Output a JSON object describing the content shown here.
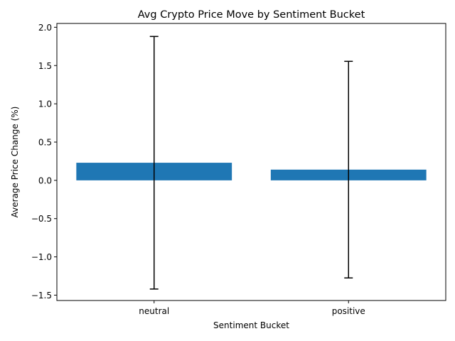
{
  "chart_data": {
    "type": "bar",
    "title": "Avg Crypto Price Move by Sentiment Bucket",
    "xlabel": "Sentiment Bucket",
    "ylabel": "Average Price Change (%)",
    "categories": [
      "neutral",
      "positive"
    ],
    "values": [
      0.23,
      0.14
    ],
    "error": [
      1.65,
      1.415
    ],
    "ylim": [
      -1.57,
      2.05
    ],
    "yticks": [
      -1.5,
      -1.0,
      -0.5,
      0.0,
      0.5,
      1.0,
      1.5,
      2.0
    ],
    "ytick_labels": [
      "−1.5",
      "−1.0",
      "−0.5",
      "0.0",
      "0.5",
      "1.0",
      "1.5",
      "2.0"
    ],
    "grid": false,
    "bar_color": "#1f77b4",
    "error_color": "#000000"
  }
}
